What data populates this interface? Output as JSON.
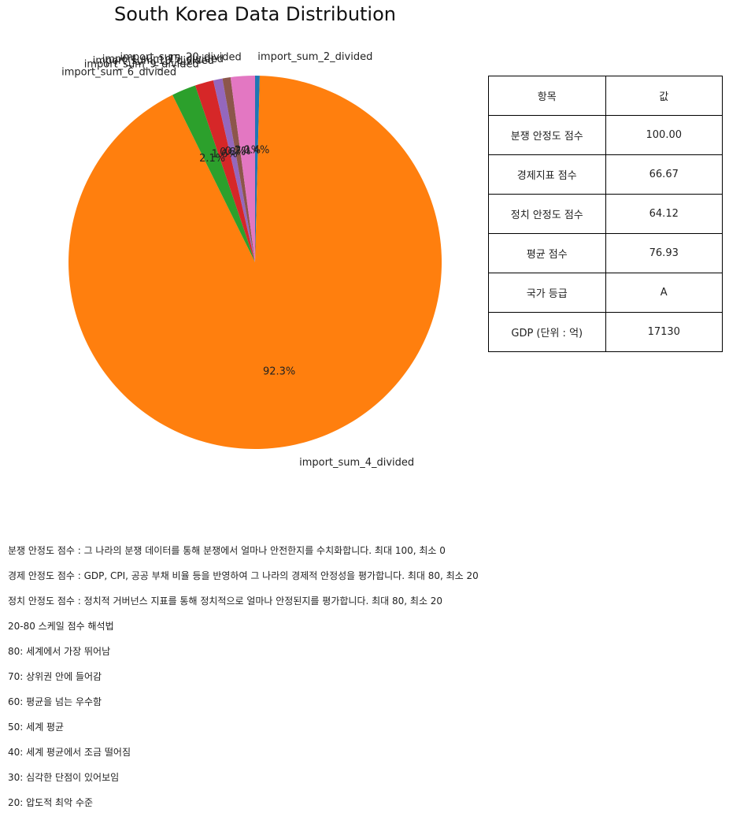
{
  "chart_data": {
    "type": "pie",
    "title": "South Korea Data Distribution",
    "slices": [
      {
        "label": "import_sum_2_divided",
        "value": 0.4,
        "pct_label": "0.4%",
        "color": "#1f77b4"
      },
      {
        "label": "import_sum_4_divided",
        "value": 92.3,
        "pct_label": "92.3%",
        "color": "#ff7f0e"
      },
      {
        "label": "import_sum_6_divided",
        "value": 2.1,
        "pct_label": "2.1%",
        "color": "#2ca02c"
      },
      {
        "label": "import_sum_9_divided",
        "value": 1.6,
        "pct_label": "1.6%",
        "color": "#d62728"
      },
      {
        "label": "import_sum_10_divided",
        "value": 0.8,
        "pct_label": "0.8%",
        "color": "#9467bd"
      },
      {
        "label": "import_sum_15_divided",
        "value": 0.7,
        "pct_label": "0.7%",
        "color": "#8c564b"
      },
      {
        "label": "import_sum_20_divided",
        "value": 2.1,
        "pct_label": "2.1%",
        "color": "#e377c2"
      }
    ],
    "start_angle_deg": 90,
    "direction": "clockwise"
  },
  "table": {
    "headers": [
      "항목",
      "값"
    ],
    "rows": [
      [
        "분쟁 안정도 점수",
        "100.00"
      ],
      [
        "경제지표 점수",
        "66.67"
      ],
      [
        "정치 안정도 점수",
        "64.12"
      ],
      [
        "평균 점수",
        "76.93"
      ],
      [
        "국가 등급",
        "A"
      ],
      [
        "GDP (단위 : 억)",
        "17130"
      ]
    ]
  },
  "notes": [
    "분쟁 안정도 점수 : 그 나라의 분쟁 데이터를 통해 분쟁에서 얼마나 안전한지를 수치화합니다. 최대 100, 최소 0",
    "경제 안정도 점수 : GDP, CPI, 공공 부채 비율 등을 반영하여 그 나라의 경제적 안정성을 평가합니다. 최대 80, 최소 20",
    "정치 안정도 점수 : 정치적 거버넌스 지표를 통해 정치적으로 얼마나 안정된지를 평가합니다. 최대 80, 최소 20",
    "20-80 스케일 점수 해석법",
    "80: 세계에서 가장 뛰어남",
    "70: 상위권 안에 들어감",
    "60: 평균을 넘는 우수함",
    "50: 세계 평균",
    "40: 세계 평균에서 조금 떨어짐",
    "30: 심각한 단점이 있어보임",
    "20: 압도적 최악 수준"
  ]
}
